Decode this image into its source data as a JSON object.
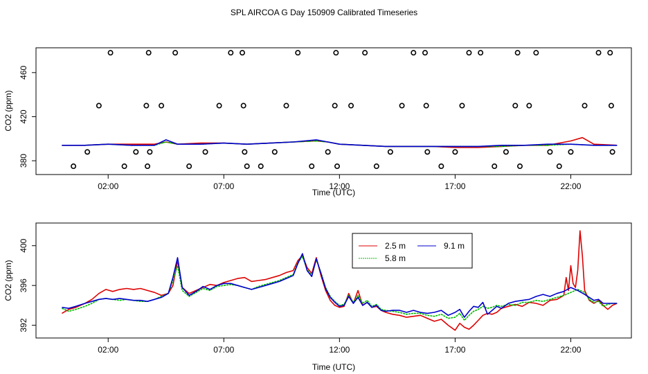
{
  "title": "SPL AIRCOA G  Day 150909  Calibrated Timeseries",
  "chart_data": [
    {
      "type": "line",
      "id": "top",
      "xlabel": "Time (UTC)",
      "ylabel": "CO2 (ppm)",
      "xlim": [
        -1.0,
        24.5
      ],
      "ylim": [
        370,
        480
      ],
      "xticks": [
        2,
        7,
        12,
        17,
        22
      ],
      "xtick_labels": [
        "02:00",
        "07:00",
        "12:00",
        "17:00",
        "22:00"
      ],
      "yticks": [
        380,
        420,
        460
      ],
      "ytick_labels": [
        "380",
        "420",
        "460"
      ],
      "series": [
        {
          "name": "2.5 m",
          "color": "#dd0000",
          "x": [
            0,
            1,
            2,
            3,
            4,
            4.5,
            5,
            6,
            7,
            8,
            9,
            10,
            11,
            11.5,
            12,
            13,
            14,
            15,
            16,
            17,
            18,
            19,
            20,
            21,
            21.5,
            22,
            22.5,
            23,
            24
          ],
          "y": [
            394,
            394,
            395,
            395,
            395,
            397,
            395,
            396,
            396,
            395,
            396,
            397,
            398,
            397,
            395,
            394,
            393,
            393,
            393,
            392,
            392,
            393,
            394,
            394,
            396,
            398,
            401,
            395,
            394
          ]
        },
        {
          "name": "5.8 m",
          "color": "#00bb00",
          "x": [
            0,
            1,
            2,
            3,
            4,
            4.5,
            5,
            6,
            7,
            8,
            9,
            10,
            11,
            11.5,
            12,
            13,
            14,
            15,
            16,
            17,
            18,
            19,
            20,
            21,
            22,
            23,
            24
          ],
          "y": [
            394,
            394,
            395,
            394,
            394,
            397,
            395,
            395,
            396,
            395,
            396,
            397,
            398,
            397,
            395,
            394,
            393,
            393,
            393,
            393,
            393,
            393,
            394,
            394,
            395,
            394,
            394
          ]
        },
        {
          "name": "9.1 m",
          "color": "#0000cc",
          "x": [
            0,
            1,
            2,
            3,
            4,
            4.5,
            5,
            6,
            7,
            8,
            9,
            10,
            11,
            11.5,
            12,
            13,
            14,
            15,
            16,
            17,
            18,
            19,
            20,
            21,
            22,
            23,
            24
          ],
          "y": [
            394,
            394,
            395,
            394,
            394,
            399,
            395,
            395,
            396,
            395,
            396,
            397,
            399,
            397,
            395,
            394,
            393,
            393,
            393,
            393,
            393,
            394,
            394,
            395,
            395,
            394,
            394
          ]
        }
      ],
      "flag_points": {
        "x": [
          0.5,
          1.1,
          1.6,
          2.1,
          2.7,
          3.2,
          3.65,
          3.7,
          3.75,
          3.8,
          4.3,
          4.9,
          5.5,
          6.2,
          6.8,
          7.3,
          7.8,
          7.85,
          7.9,
          8.0,
          8.6,
          9.2,
          9.7,
          10.2,
          10.8,
          11.5,
          11.8,
          11.85,
          11.9,
          12.5,
          13.1,
          13.6,
          14.2,
          14.7,
          15.2,
          15.7,
          15.75,
          15.8,
          16.4,
          17.0,
          17.3,
          17.6,
          18.1,
          18.7,
          19.2,
          19.6,
          19.7,
          19.8,
          20.2,
          20.5,
          21.1,
          21.5,
          22.0,
          22.6,
          23.2,
          23.7,
          23.75,
          23.8
        ],
        "y": [
          375,
          388,
          430,
          478,
          375,
          388,
          430,
          375,
          478,
          388,
          430,
          478,
          375,
          388,
          430,
          478,
          478,
          430,
          388,
          375,
          375,
          388,
          430,
          478,
          375,
          388,
          430,
          478,
          375,
          430,
          478,
          375,
          388,
          430,
          478,
          478,
          430,
          388,
          375,
          388,
          430,
          478,
          478,
          375,
          388,
          430,
          478,
          375,
          430,
          478,
          388,
          375,
          388,
          430,
          478,
          478,
          430,
          388
        ]
      }
    },
    {
      "type": "line",
      "id": "bottom",
      "xlabel": "Time (UTC)",
      "ylabel": "CO2 (ppm)",
      "xlim": [
        -1.0,
        24.5
      ],
      "ylim": [
        391,
        402
      ],
      "xticks": [
        2,
        7,
        12,
        17,
        22
      ],
      "xtick_labels": [
        "02:00",
        "07:00",
        "12:00",
        "17:00",
        "22:00"
      ],
      "yticks": [
        392,
        396,
        400
      ],
      "ytick_labels": [
        "392",
        "396",
        "400"
      ],
      "legend": {
        "position": "top-center",
        "entries": [
          "2.5 m",
          "5.8 m",
          "9.1 m"
        ]
      },
      "series": [
        {
          "name": "2.5 m",
          "color": "#dd0000",
          "x": [
            0,
            0.3,
            0.6,
            1.0,
            1.3,
            1.6,
            1.9,
            2.2,
            2.5,
            2.8,
            3.1,
            3.4,
            3.7,
            4.0,
            4.3,
            4.6,
            4.8,
            5.0,
            5.2,
            5.5,
            5.8,
            6.1,
            6.4,
            6.7,
            7.0,
            7.3,
            7.6,
            7.9,
            8.2,
            8.5,
            8.8,
            9.1,
            9.4,
            9.7,
            10.0,
            10.2,
            10.4,
            10.6,
            10.8,
            11.0,
            11.2,
            11.4,
            11.6,
            11.8,
            12.0,
            12.2,
            12.4,
            12.6,
            12.8,
            13.0,
            13.2,
            13.4,
            13.6,
            13.8,
            14.0,
            14.3,
            14.6,
            14.9,
            15.2,
            15.5,
            15.8,
            16.1,
            16.4,
            16.7,
            17.0,
            17.2,
            17.4,
            17.6,
            17.8,
            18.0,
            18.2,
            18.4,
            18.6,
            18.8,
            19.0,
            19.3,
            19.6,
            19.9,
            20.2,
            20.5,
            20.8,
            21.1,
            21.4,
            21.7,
            21.8,
            21.9,
            22.0,
            22.1,
            22.2,
            22.3,
            22.4,
            22.5,
            22.6,
            22.7,
            22.8,
            23.0,
            23.2,
            23.4,
            23.6,
            23.8,
            24.0
          ],
          "y": [
            393.2,
            393.6,
            393.8,
            394.2,
            394.6,
            395.2,
            395.6,
            395.4,
            395.6,
            395.7,
            395.6,
            395.7,
            395.5,
            395.3,
            395.0,
            395.2,
            396.0,
            398.5,
            395.8,
            395.2,
            395.5,
            395.8,
            396.1,
            396.0,
            396.3,
            396.5,
            396.7,
            396.8,
            396.4,
            396.5,
            396.6,
            396.8,
            397.0,
            397.3,
            397.5,
            398.5,
            399.0,
            397.8,
            397.2,
            398.8,
            397.0,
            395.5,
            394.5,
            394.0,
            393.8,
            393.9,
            395.2,
            394.2,
            395.5,
            394.0,
            394.3,
            393.8,
            393.9,
            393.5,
            393.3,
            393.1,
            393.0,
            392.8,
            392.9,
            393.0,
            392.7,
            392.4,
            392.6,
            392.0,
            391.5,
            392.2,
            391.8,
            391.6,
            392.0,
            392.5,
            393.0,
            393.2,
            393.1,
            393.3,
            393.7,
            393.9,
            394.1,
            393.9,
            394.3,
            394.2,
            394.0,
            394.5,
            394.6,
            395.0,
            396.8,
            395.5,
            398.0,
            396.2,
            395.8,
            397.5,
            401.5,
            399.0,
            395.5,
            395.0,
            394.5,
            394.2,
            394.5,
            394.0,
            393.6,
            394.0,
            394.2
          ]
        },
        {
          "name": "5.8 m",
          "color": "#00bb00",
          "x": [
            0,
            0.3,
            0.6,
            1.0,
            1.3,
            1.6,
            1.9,
            2.2,
            2.5,
            2.8,
            3.1,
            3.4,
            3.7,
            4.0,
            4.3,
            4.6,
            4.8,
            5.0,
            5.2,
            5.5,
            5.8,
            6.1,
            6.4,
            6.7,
            7.0,
            7.3,
            7.6,
            7.9,
            8.2,
            8.5,
            8.8,
            9.1,
            9.4,
            9.7,
            10.0,
            10.2,
            10.4,
            10.6,
            10.8,
            11.0,
            11.2,
            11.4,
            11.6,
            11.8,
            12.0,
            12.2,
            12.4,
            12.6,
            12.8,
            13.0,
            13.2,
            13.4,
            13.6,
            13.8,
            14.0,
            14.3,
            14.6,
            14.9,
            15.2,
            15.5,
            15.8,
            16.1,
            16.4,
            16.7,
            17.0,
            17.2,
            17.4,
            17.6,
            17.8,
            18.0,
            18.2,
            18.4,
            18.6,
            18.8,
            19.0,
            19.3,
            19.6,
            19.9,
            20.2,
            20.5,
            20.8,
            21.1,
            21.4,
            21.7,
            22.0,
            22.3,
            22.6,
            22.8,
            23.0,
            23.2,
            23.4,
            23.6,
            23.8,
            24.0
          ],
          "y": [
            393.7,
            393.4,
            393.6,
            393.9,
            394.2,
            394.6,
            394.7,
            394.6,
            394.5,
            394.6,
            394.5,
            394.4,
            394.4,
            394.6,
            394.9,
            395.2,
            396.5,
            398.0,
            395.5,
            394.9,
            395.3,
            395.7,
            395.5,
            395.9,
            396.0,
            396.1,
            396.0,
            395.8,
            395.6,
            395.9,
            396.1,
            396.3,
            396.5,
            396.8,
            397.1,
            398.3,
            398.9,
            397.6,
            397.0,
            398.6,
            397.3,
            395.8,
            394.9,
            394.4,
            394.0,
            394.1,
            395.0,
            394.3,
            395.0,
            394.2,
            394.5,
            393.9,
            394.1,
            393.6,
            393.5,
            393.4,
            393.3,
            393.1,
            393.2,
            393.2,
            393.0,
            392.9,
            393.1,
            392.7,
            392.8,
            393.2,
            392.5,
            393.0,
            393.4,
            393.6,
            393.9,
            393.7,
            393.8,
            394.0,
            393.9,
            394.1,
            394.0,
            394.3,
            394.3,
            394.5,
            394.4,
            394.6,
            394.8,
            395.0,
            395.3,
            395.6,
            395.3,
            394.6,
            394.3,
            394.4,
            393.9,
            394.1,
            394.2,
            394.2
          ]
        },
        {
          "name": "9.1 m",
          "color": "#0000cc",
          "x": [
            0,
            0.3,
            0.6,
            1.0,
            1.3,
            1.6,
            1.9,
            2.2,
            2.5,
            2.8,
            3.1,
            3.4,
            3.7,
            4.0,
            4.3,
            4.6,
            4.8,
            5.0,
            5.2,
            5.5,
            5.8,
            6.1,
            6.4,
            6.7,
            7.0,
            7.3,
            7.6,
            7.9,
            8.2,
            8.5,
            8.8,
            9.1,
            9.4,
            9.7,
            10.0,
            10.2,
            10.4,
            10.6,
            10.8,
            11.0,
            11.2,
            11.4,
            11.6,
            11.8,
            12.0,
            12.2,
            12.4,
            12.6,
            12.8,
            13.0,
            13.2,
            13.4,
            13.6,
            13.8,
            14.0,
            14.3,
            14.6,
            14.9,
            15.2,
            15.5,
            15.8,
            16.1,
            16.4,
            16.7,
            17.0,
            17.2,
            17.4,
            17.6,
            17.8,
            18.0,
            18.2,
            18.4,
            18.6,
            18.8,
            19.0,
            19.3,
            19.6,
            19.9,
            20.2,
            20.5,
            20.8,
            21.1,
            21.4,
            21.7,
            22.0,
            22.3,
            22.6,
            22.8,
            23.0,
            23.2,
            23.4,
            23.6,
            23.8,
            24.0
          ],
          "y": [
            393.8,
            393.7,
            393.9,
            394.2,
            394.4,
            394.6,
            394.7,
            394.6,
            394.7,
            394.6,
            394.5,
            394.5,
            394.4,
            394.6,
            394.8,
            395.2,
            396.8,
            398.8,
            395.8,
            395.0,
            395.4,
            395.9,
            395.6,
            396.0,
            396.2,
            396.2,
            396.0,
            395.8,
            395.6,
            395.8,
            396.0,
            396.2,
            396.4,
            396.7,
            397.0,
            398.2,
            399.2,
            397.5,
            396.9,
            398.7,
            397.2,
            395.7,
            394.8,
            394.3,
            393.9,
            394.0,
            394.9,
            394.2,
            394.8,
            394.0,
            394.3,
            393.8,
            394.0,
            393.5,
            393.4,
            393.5,
            393.5,
            393.3,
            393.5,
            393.3,
            393.2,
            393.3,
            393.5,
            393.0,
            393.3,
            393.6,
            392.8,
            393.4,
            393.9,
            393.8,
            394.3,
            393.1,
            393.5,
            393.9,
            393.7,
            394.2,
            394.4,
            394.5,
            394.6,
            394.9,
            395.1,
            394.9,
            395.2,
            395.4,
            395.8,
            395.5,
            395.1,
            394.8,
            394.5,
            394.6,
            394.2,
            394.2,
            394.2,
            394.2
          ]
        }
      ]
    }
  ]
}
